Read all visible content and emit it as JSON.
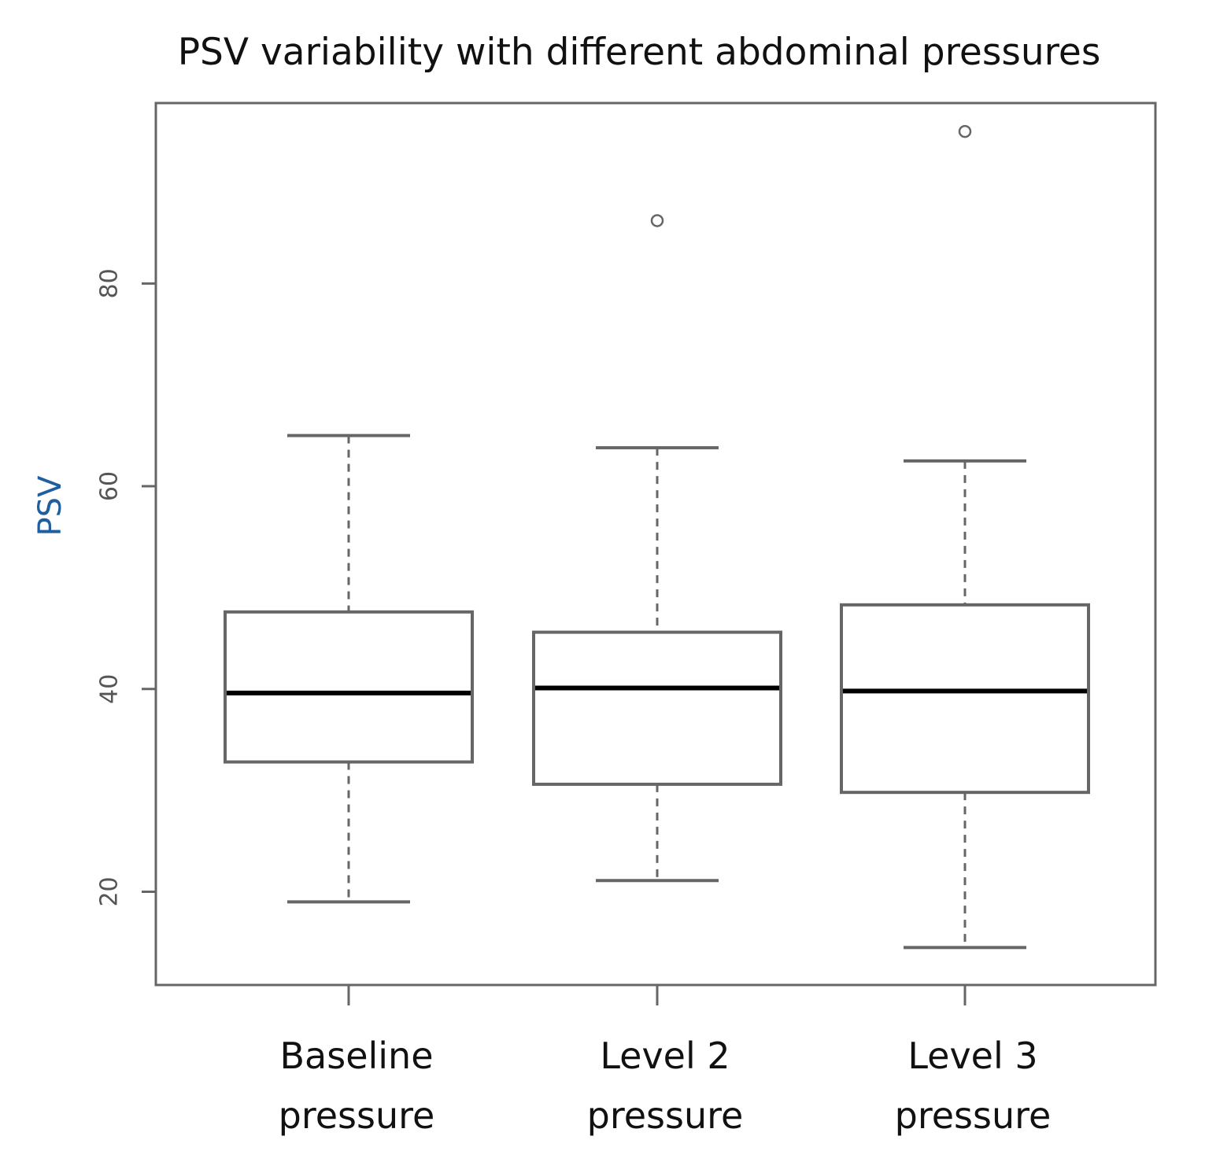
{
  "chart_data": {
    "type": "boxplot",
    "title": "PSV variability with different abdominal pressures",
    "xlabel": "",
    "ylabel": "PSV",
    "ylim": [
      10.8,
      97.8
    ],
    "yticks": [
      20,
      40,
      60,
      80
    ],
    "grid": false,
    "categories": [
      {
        "line1": "Baseline",
        "line2": "pressure"
      },
      {
        "line1": "Level 2",
        "line2": "pressure"
      },
      {
        "line1": "Level 3",
        "line2": "pressure"
      }
    ],
    "boxes": [
      {
        "name": "Baseline pressure",
        "whisker_low": 19,
        "q1": 32.8,
        "median": 39.6,
        "q3": 47.6,
        "whisker_high": 65,
        "outliers": []
      },
      {
        "name": "Level 2 pressure",
        "whisker_low": 21.1,
        "q1": 30.6,
        "median": 40.1,
        "q3": 45.6,
        "whisker_high": 63.8,
        "outliers": [
          86.2
        ]
      },
      {
        "name": "Level 3 pressure",
        "whisker_low": 14.5,
        "q1": 29.8,
        "median": 39.8,
        "q3": 48.3,
        "whisker_high": 62.5,
        "outliers": [
          95
        ]
      }
    ],
    "colors": {
      "axis": "#666666",
      "box": "#666666",
      "median": "#000000",
      "ylabel": "#1f5f9f",
      "text": "#111111"
    }
  }
}
